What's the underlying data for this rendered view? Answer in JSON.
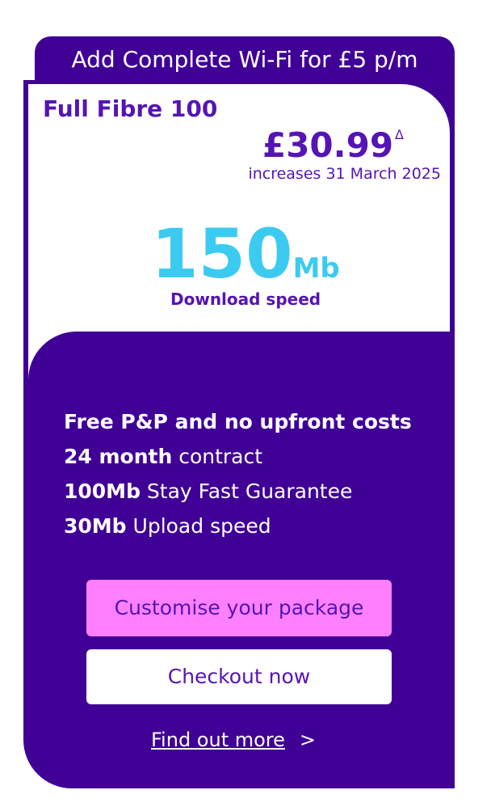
{
  "banner": "Add Complete Wi-Fi for £5 p/m",
  "plan": {
    "name": "Full Fibre 100",
    "price": "£30.99",
    "price_marker": "Δ",
    "price_note": "increases 31 March 2025",
    "speed_value": "150",
    "speed_unit": "Mb",
    "speed_label": "Download speed"
  },
  "features": [
    {
      "bold": "Free P&P and no upfront costs",
      "rest": ""
    },
    {
      "bold": "24 month",
      "rest": " contract"
    },
    {
      "bold": "100Mb",
      "rest": " Stay Fast Guarantee"
    },
    {
      "bold": "30Mb",
      "rest": " Upload speed"
    }
  ],
  "buttons": {
    "customise": "Customise your package",
    "checkout": "Checkout now",
    "more": "Find out more",
    "more_chevron": ">"
  },
  "colors": {
    "brand": "#400096",
    "accent": "#5514b4",
    "speed": "#3ccbf0",
    "pink": "#ff80ff"
  }
}
